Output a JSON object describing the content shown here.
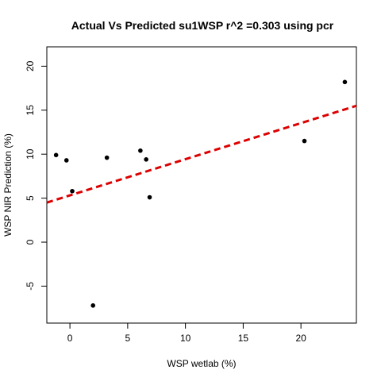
{
  "chart_data": {
    "type": "scatter",
    "title": "Actual Vs Predicted su1WSP r^2 =0.303 using pcr",
    "xlabel": "WSP wetlab (%)",
    "ylabel": "WSP NIR Prediction (%)",
    "xlim": [
      -2,
      24.8
    ],
    "ylim": [
      -9.2,
      22.2
    ],
    "x_ticks": [
      0,
      5,
      10,
      15,
      20
    ],
    "y_ticks": [
      -5,
      0,
      5,
      10,
      15,
      20
    ],
    "grid": false,
    "points": [
      {
        "x": -1.2,
        "y": 9.9
      },
      {
        "x": -0.3,
        "y": 9.3
      },
      {
        "x": 0.2,
        "y": 5.8
      },
      {
        "x": 2.0,
        "y": -7.2
      },
      {
        "x": 3.2,
        "y": 9.6
      },
      {
        "x": 6.1,
        "y": 10.4
      },
      {
        "x": 6.6,
        "y": 9.4
      },
      {
        "x": 6.9,
        "y": 5.1
      },
      {
        "x": 20.3,
        "y": 11.5
      },
      {
        "x": 23.8,
        "y": 18.2
      }
    ],
    "fit_line": {
      "style": "dashed",
      "color": "#dd0000",
      "x": [
        -2,
        24.8
      ],
      "y": [
        4.5,
        15.5
      ]
    },
    "point_color": "#000000"
  }
}
